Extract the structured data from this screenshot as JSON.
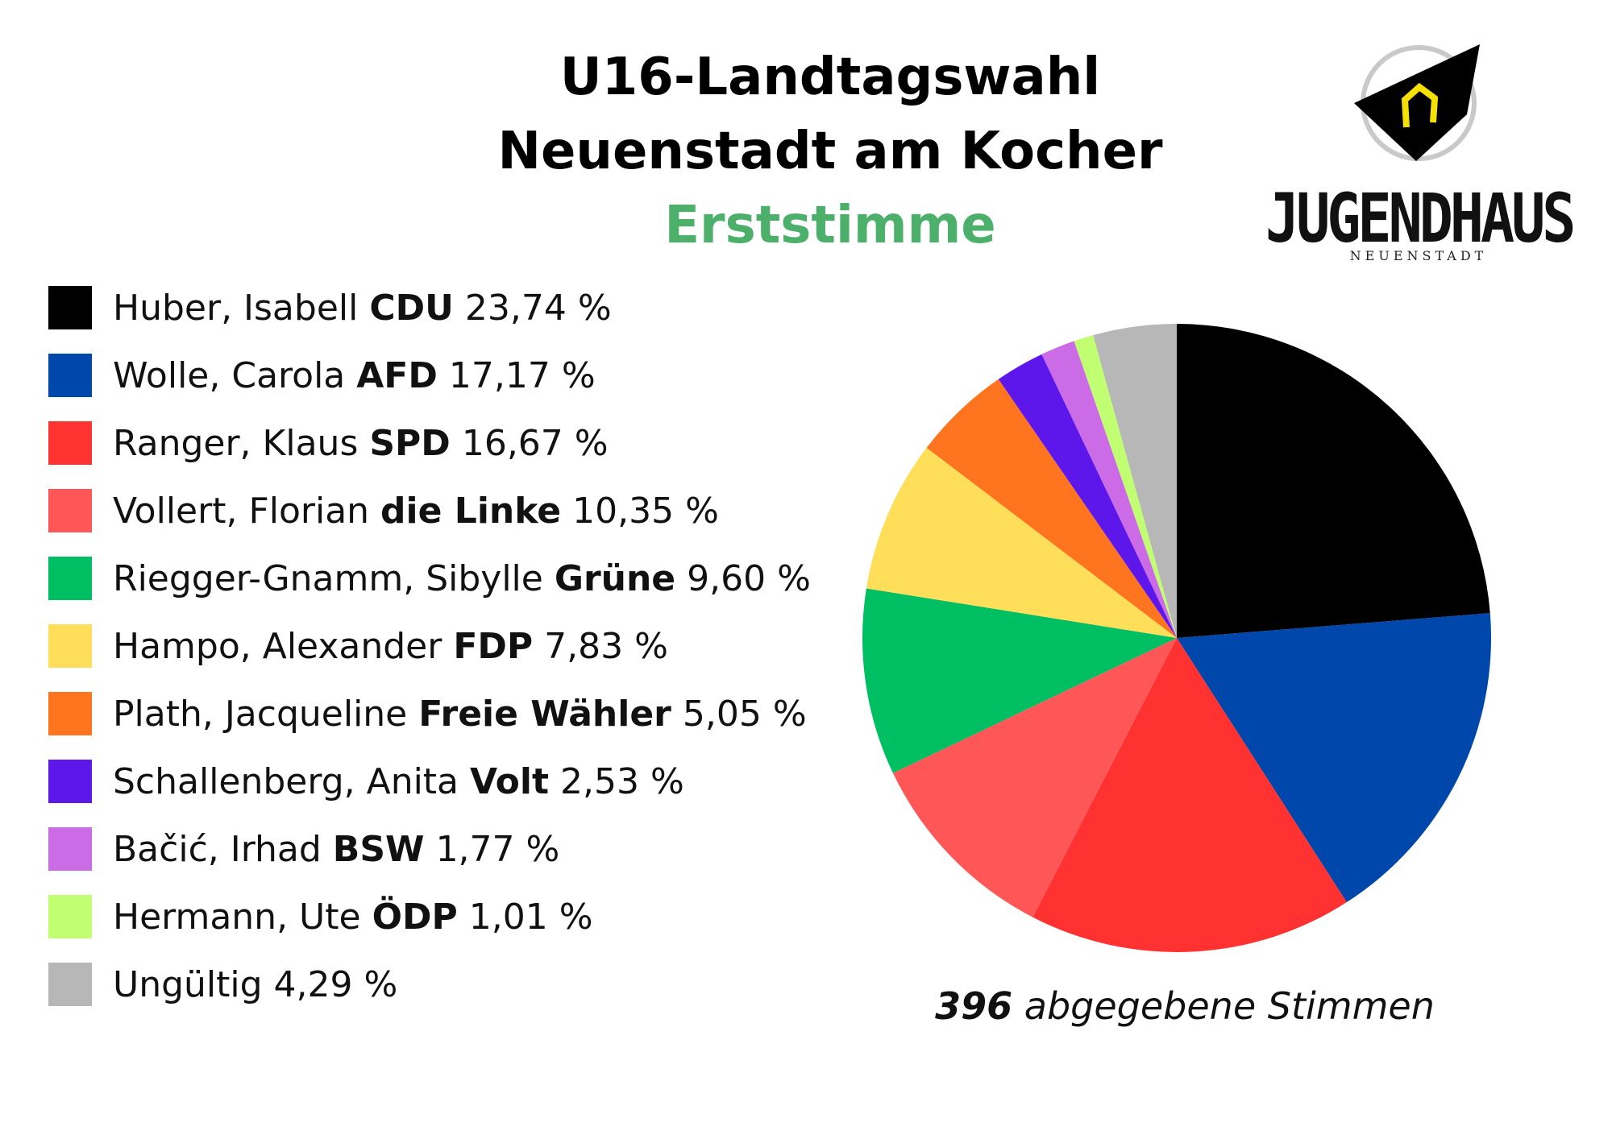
{
  "header": {
    "title_line1": "U16-Landtagswahl",
    "title_line2": "Neuenstadt am Kocher",
    "subtitle": "Erststimme",
    "subtitle_color": "#4caf6a"
  },
  "logo": {
    "name": "JUGENDHAUS",
    "sub": "NEUENSTADT",
    "icon": "house-icon"
  },
  "footer": {
    "votes_count": "396",
    "votes_label": "abgegebene Stimmen"
  },
  "chart_data": {
    "type": "pie",
    "start_angle": "12 o'clock",
    "direction": "clockwise",
    "slices": [
      {
        "name": "Huber, Isabell",
        "party": "CDU",
        "value": 23.74,
        "label": "23,74 %",
        "color": "#000000"
      },
      {
        "name": "Wolle, Carola",
        "party": "AFD",
        "value": 17.17,
        "label": "17,17 %",
        "color": "#0047ab"
      },
      {
        "name": "Ranger, Klaus",
        "party": "SPD",
        "value": 16.67,
        "label": "16,67 %",
        "color": "#ff3131"
      },
      {
        "name": "Vollert, Florian",
        "party": "die Linke",
        "value": 10.35,
        "label": "10,35 %",
        "color": "#ff5757"
      },
      {
        "name": "Riegger-Gnamm, Sibylle",
        "party": "Grüne",
        "value": 9.6,
        "label": "9,60 %",
        "color": "#00bf63"
      },
      {
        "name": "Hampo, Alexander",
        "party": "FDP",
        "value": 7.83,
        "label": "7,83 %",
        "color": "#ffde59"
      },
      {
        "name": "Plath, Jacqueline",
        "party": "Freie Wähler",
        "value": 5.05,
        "label": "5,05 %",
        "color": "#ff751f"
      },
      {
        "name": "Schallenberg, Anita",
        "party": "Volt",
        "value": 2.53,
        "label": "2,53 %",
        "color": "#5e17eb"
      },
      {
        "name": "Bačić, Irhad",
        "party": "BSW",
        "value": 1.77,
        "label": "1,77 %",
        "color": "#cb6ce6"
      },
      {
        "name": "Hermann, Ute",
        "party": "ÖDP",
        "value": 1.01,
        "label": "1,01 %",
        "color": "#c1ff72"
      },
      {
        "name": "Ungültig",
        "party": "",
        "value": 4.29,
        "label": "4,29 %",
        "color": "#b7b7b7"
      }
    ]
  }
}
